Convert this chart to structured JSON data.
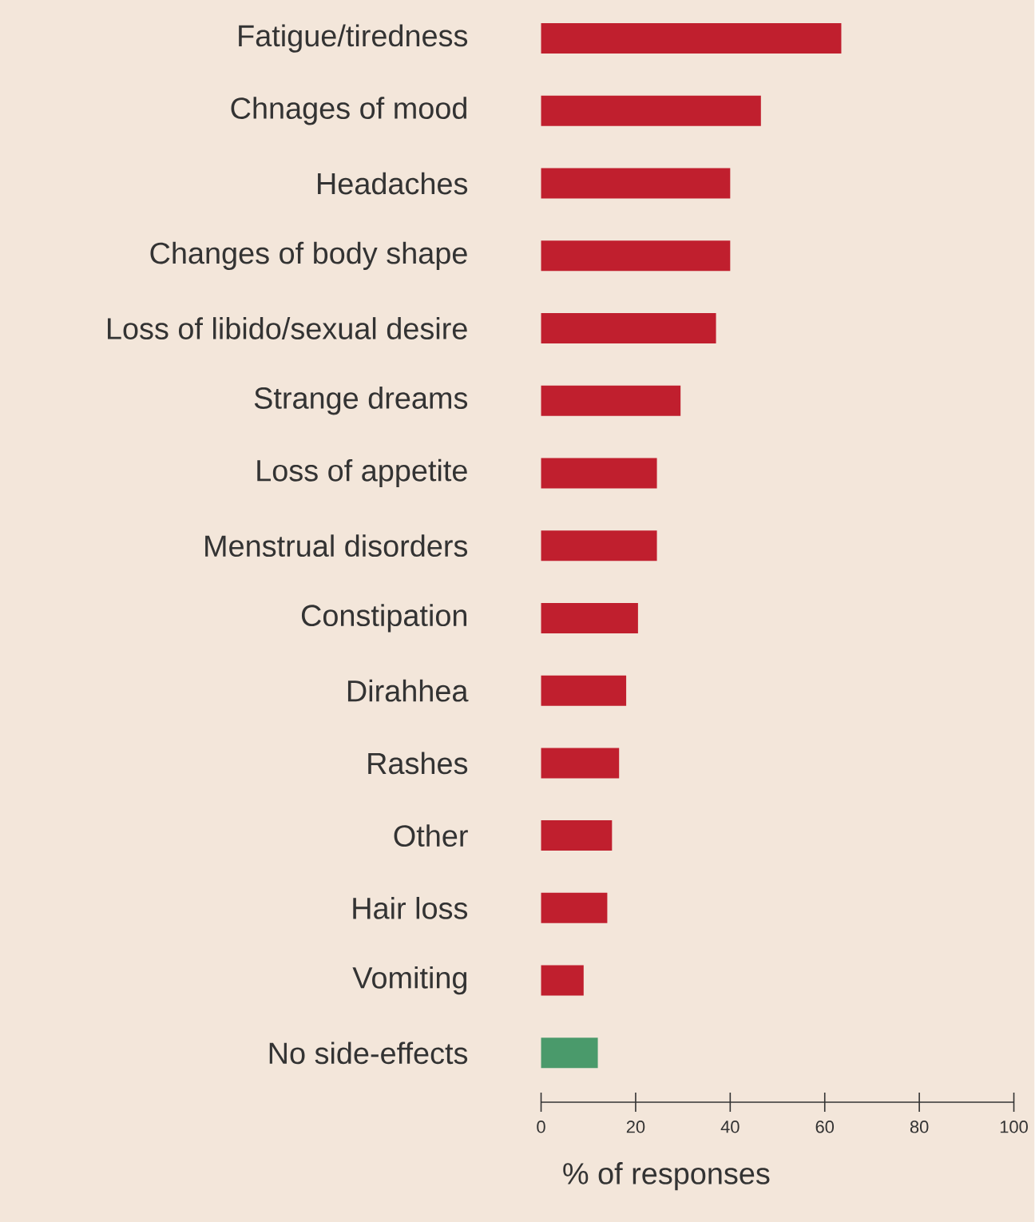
{
  "chart_data": {
    "type": "bar",
    "orientation": "horizontal",
    "xlabel": "% of responses",
    "categories": [
      "Fatigue/tiredness",
      "Chnages of mood",
      "Headaches",
      "Changes of body shape",
      "Loss of libido/sexual desire",
      "Strange dreams",
      "Loss of appetite",
      "Menstrual disorders",
      "Constipation",
      "Dirahhea",
      "Rashes",
      "Other",
      "Hair loss",
      "Vomiting",
      "No side-effects"
    ],
    "values": [
      63.5,
      46.5,
      40,
      40,
      37,
      29.5,
      24.5,
      24.5,
      20.5,
      18,
      16.5,
      15,
      14,
      9,
      12
    ],
    "colors": [
      "#c01f2e",
      "#c01f2e",
      "#c01f2e",
      "#c01f2e",
      "#c01f2e",
      "#c01f2e",
      "#c01f2e",
      "#c01f2e",
      "#c01f2e",
      "#c01f2e",
      "#c01f2e",
      "#c01f2e",
      "#c01f2e",
      "#c01f2e",
      "#4a9a6b"
    ],
    "xlim": [
      0,
      100
    ],
    "xticks": [
      0,
      20,
      40,
      60,
      80,
      100
    ]
  }
}
